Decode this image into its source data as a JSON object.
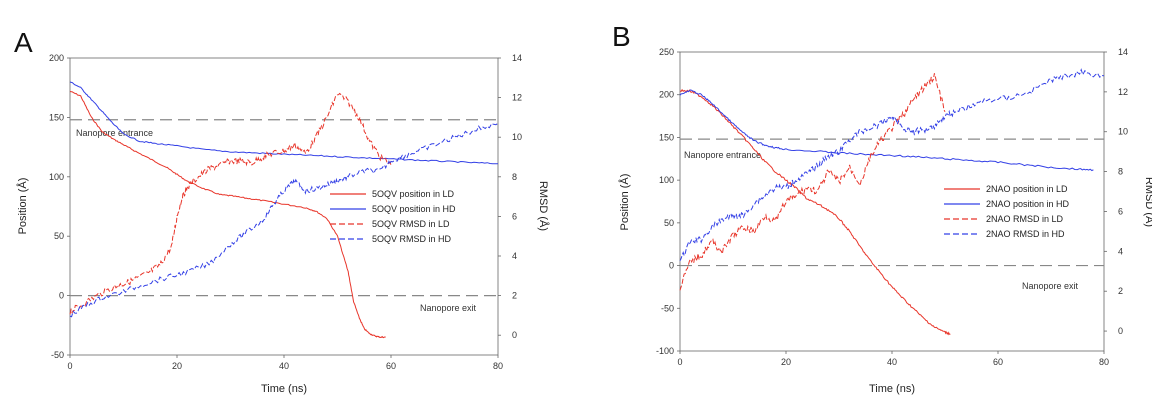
{
  "colors": {
    "ld": "#e8352a",
    "hd": "#3340e6",
    "ref": "#888888"
  },
  "chart_data": [
    {
      "type": "line",
      "panel_label": "A",
      "xlabel": "Time (ns)",
      "ylabel": "Position (Å)",
      "y2label": "RMSD (Å)",
      "xlim": [
        0,
        80
      ],
      "ylim": [
        -50,
        200
      ],
      "y2lim": [
        -1,
        14
      ],
      "xticks": [
        "0",
        "20",
        "40",
        "60",
        "80"
      ],
      "yticks": [
        "-50",
        "0",
        "50",
        "100",
        "150",
        "200"
      ],
      "y2ticks": [
        "0",
        "2",
        "4",
        "6",
        "8",
        "10",
        "12",
        "14"
      ],
      "reference_lines": [
        {
          "label": "Nanopore entrance",
          "y": 148
        },
        {
          "label": "Nanopore exit",
          "y": 0
        }
      ],
      "legend_position": "right",
      "series": [
        {
          "name": "5OQV position in LD",
          "axis": "left",
          "style": "solid",
          "color": "#e8352a",
          "x": [
            0,
            2,
            4,
            6,
            8,
            10,
            12,
            15,
            18,
            20,
            22,
            25,
            28,
            30,
            33,
            36,
            40,
            44,
            46,
            48,
            50,
            52,
            53,
            54,
            55,
            56,
            57,
            58,
            59
          ],
          "y": [
            172,
            168,
            150,
            138,
            132,
            127,
            122,
            115,
            108,
            102,
            96,
            90,
            85,
            84,
            82,
            80,
            77,
            74,
            71,
            65,
            50,
            20,
            -5,
            -18,
            -28,
            -32,
            -34,
            -35,
            -35
          ]
        },
        {
          "name": "5OQV position in HD",
          "axis": "left",
          "style": "solid",
          "color": "#3340e6",
          "x": [
            0,
            2,
            4,
            6,
            8,
            10,
            13,
            16,
            20,
            25,
            30,
            35,
            40,
            45,
            50,
            55,
            60,
            65,
            70,
            75,
            80
          ],
          "y": [
            180,
            175,
            165,
            155,
            145,
            136,
            130,
            128,
            126,
            123,
            121,
            120,
            119,
            118,
            117,
            116,
            115,
            114,
            113,
            112,
            111
          ]
        },
        {
          "name": "5OQV RMSD in LD",
          "axis": "right",
          "style": "dashed",
          "color": "#e8352a",
          "x": [
            0,
            2,
            5,
            8,
            10,
            12,
            15,
            17,
            19,
            20,
            21,
            22,
            24,
            26,
            28,
            30,
            32,
            34,
            36,
            38,
            40,
            42,
            44,
            46,
            48,
            50,
            52,
            54,
            56,
            58,
            60
          ],
          "y": [
            1.2,
            1.5,
            2.0,
            2.4,
            2.6,
            2.8,
            3.2,
            3.6,
            4.5,
            6.0,
            7.0,
            7.5,
            8.0,
            8.4,
            8.6,
            8.8,
            8.8,
            8.7,
            9.0,
            9.2,
            9.3,
            9.6,
            9.2,
            10.0,
            11.0,
            12.2,
            11.8,
            11.0,
            9.8,
            9.0,
            8.6
          ]
        },
        {
          "name": "5OQV RMSD in HD",
          "axis": "right",
          "style": "dashed",
          "color": "#3340e6",
          "x": [
            0,
            3,
            6,
            10,
            14,
            18,
            22,
            26,
            30,
            33,
            36,
            38,
            40,
            42,
            44,
            46,
            48,
            50,
            52,
            55,
            58,
            60,
            63,
            66,
            70,
            73,
            76,
            80
          ],
          "y": [
            1.0,
            1.5,
            1.9,
            2.2,
            2.6,
            2.9,
            3.2,
            3.6,
            4.6,
            5.2,
            5.8,
            6.6,
            7.3,
            7.8,
            7.3,
            7.4,
            7.6,
            7.8,
            8.0,
            8.3,
            8.3,
            8.8,
            9.1,
            9.4,
            9.8,
            10.1,
            10.4,
            10.7
          ]
        }
      ]
    },
    {
      "type": "line",
      "panel_label": "B",
      "xlabel": "Time (ns)",
      "ylabel": "Position (Å)",
      "y2label": "RMSD (Å)",
      "xlim": [
        0,
        80
      ],
      "ylim": [
        -100,
        250
      ],
      "y2lim": [
        -1,
        14
      ],
      "xticks": [
        "0",
        "20",
        "40",
        "60",
        "80"
      ],
      "yticks": [
        "-100",
        "-50",
        "0",
        "50",
        "100",
        "150",
        "200",
        "250"
      ],
      "y2ticks": [
        "0",
        "2",
        "4",
        "6",
        "8",
        "10",
        "12",
        "14"
      ],
      "reference_lines": [
        {
          "label": "Nanopore entrance",
          "y": 148
        },
        {
          "label": "Nanopore exit",
          "y": 0
        }
      ],
      "legend_position": "right",
      "series": [
        {
          "name": "2NAO position in LD",
          "axis": "left",
          "style": "solid",
          "color": "#e8352a",
          "x": [
            0,
            2,
            4,
            6,
            8,
            10,
            12,
            14,
            16,
            18,
            20,
            22,
            24,
            26,
            28,
            30,
            32,
            34,
            36,
            38,
            40,
            42,
            44,
            46,
            48,
            50,
            51
          ],
          "y": [
            205,
            204,
            198,
            188,
            176,
            163,
            150,
            136,
            122,
            110,
            100,
            90,
            78,
            72,
            65,
            55,
            40,
            22,
            5,
            -10,
            -25,
            -38,
            -50,
            -62,
            -72,
            -78,
            -80
          ]
        },
        {
          "name": "2NAO position in HD",
          "axis": "left",
          "style": "solid",
          "color": "#3340e6",
          "x": [
            0,
            2,
            4,
            6,
            8,
            10,
            12,
            14,
            16,
            18,
            20,
            25,
            30,
            35,
            40,
            45,
            50,
            55,
            60,
            65,
            70,
            75,
            78
          ],
          "y": [
            200,
            205,
            200,
            190,
            178,
            166,
            155,
            146,
            141,
            138,
            136,
            134,
            132,
            130,
            129,
            127,
            125,
            123,
            121,
            118,
            115,
            113,
            112
          ]
        },
        {
          "name": "2NAO RMSD in LD",
          "axis": "right",
          "style": "dashed",
          "color": "#e8352a",
          "x": [
            0,
            2,
            4,
            6,
            8,
            10,
            12,
            14,
            16,
            18,
            20,
            22,
            24,
            26,
            28,
            30,
            32,
            34,
            36,
            38,
            40,
            42,
            44,
            46,
            48,
            50
          ],
          "y": [
            2.2,
            3.5,
            3.8,
            4.5,
            4.0,
            4.8,
            5.2,
            5.0,
            5.8,
            5.5,
            6.5,
            6.8,
            7.2,
            7.0,
            8.0,
            7.5,
            8.2,
            7.4,
            8.8,
            9.6,
            10.2,
            10.8,
            11.6,
            12.2,
            12.8,
            11.0
          ]
        },
        {
          "name": "2NAO RMSD in HD",
          "axis": "right",
          "style": "dashed",
          "color": "#3340e6",
          "x": [
            0,
            2,
            4,
            6,
            8,
            10,
            12,
            14,
            16,
            18,
            20,
            22,
            24,
            26,
            28,
            30,
            32,
            34,
            36,
            38,
            40,
            42,
            44,
            46,
            48,
            50,
            52,
            55,
            58,
            62,
            66,
            70,
            73,
            76,
            80
          ],
          "y": [
            3.5,
            4.5,
            4.6,
            5.2,
            5.6,
            5.8,
            5.8,
            6.4,
            6.8,
            7.2,
            7.2,
            7.6,
            7.9,
            8.3,
            8.8,
            9.0,
            9.6,
            10.0,
            10.2,
            10.4,
            10.8,
            10.2,
            10.0,
            10.1,
            10.3,
            10.8,
            11.0,
            11.3,
            11.6,
            11.7,
            12.0,
            12.6,
            12.8,
            13.0,
            12.8
          ]
        }
      ]
    }
  ]
}
